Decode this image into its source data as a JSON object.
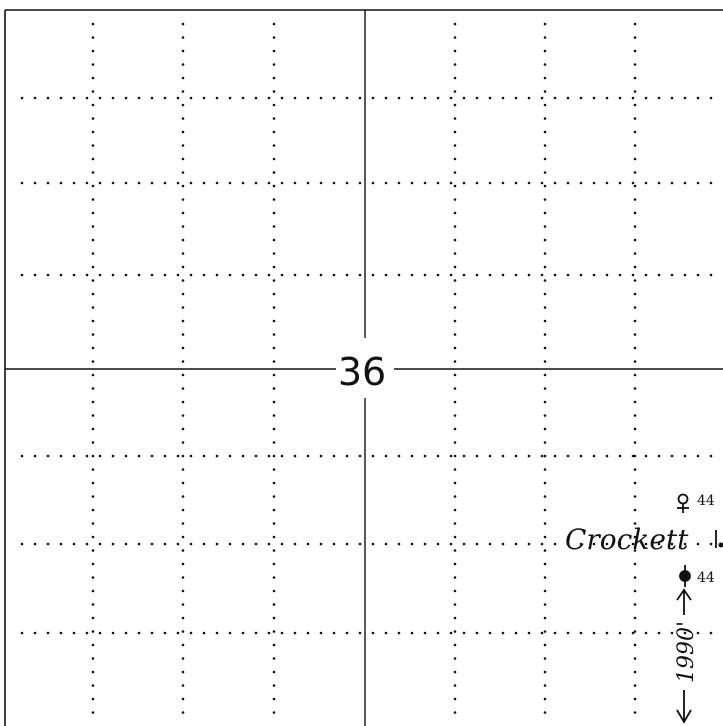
{
  "section": {
    "number": "36"
  },
  "annotations": {
    "lease_name": "Crockett",
    "well_top_label": "44",
    "well_bottom_label": "44",
    "distance_label": "1990'"
  },
  "colors": {
    "ink": "#111111",
    "paper": "#ffffff"
  },
  "icons": {
    "well_top": "gas-well-symbol",
    "well_bottom": "oil-well-symbol",
    "distance_arrow": "double-arrow-dimension"
  }
}
